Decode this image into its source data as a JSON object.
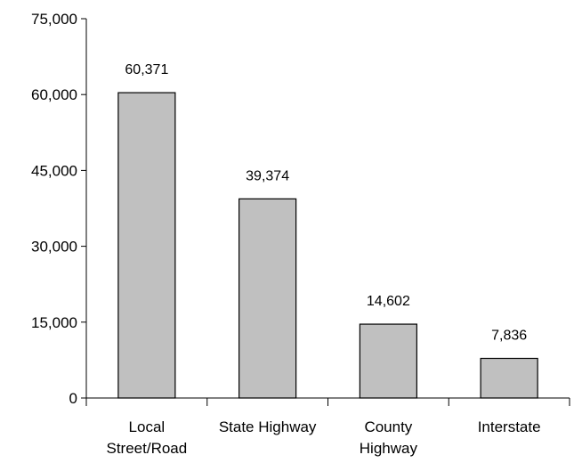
{
  "chart_data": {
    "type": "bar",
    "categories": [
      [
        "Local",
        "Street/Road"
      ],
      [
        "State Highway"
      ],
      [
        "County",
        "Highway"
      ],
      [
        "Interstate"
      ]
    ],
    "values": [
      60371,
      39374,
      14602,
      7836
    ],
    "value_labels": [
      "60,371",
      "39,374",
      "14,602",
      "7,836"
    ],
    "yticks": [
      0,
      15000,
      30000,
      45000,
      60000,
      75000
    ],
    "ytick_labels": [
      "0",
      "15,000",
      "30,000",
      "45,000",
      "60,000",
      "75,000"
    ],
    "ylim": [
      0,
      75000
    ],
    "grid": false,
    "legend": "none",
    "colors": {
      "bar_fill": "#c0c0c0",
      "bar_stroke": "#000000",
      "axis": "#000000"
    }
  }
}
